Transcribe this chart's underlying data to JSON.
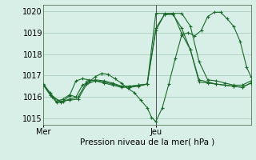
{
  "background_color": "#d8efe8",
  "grid_color": "#aacfbf",
  "line_color": "#1a6b2a",
  "xlabel": "Pression niveau de la mer( hPa )",
  "ylim": [
    1014.7,
    1020.3
  ],
  "yticks": [
    1015,
    1016,
    1017,
    1018,
    1019,
    1020
  ],
  "xlim": [
    0,
    48
  ],
  "xtick_pos": [
    0,
    26
  ],
  "xtick_labels": [
    "Mer",
    "Jeu"
  ],
  "vline_pos": 26,
  "series": [
    {
      "x": [
        0,
        1.5,
        3,
        4.5,
        6,
        7.5,
        9,
        10.5,
        12,
        13.5,
        15,
        16.5,
        18,
        19.5,
        21,
        22.5,
        24,
        25,
        26,
        27.5,
        29,
        30.5,
        32,
        33.5,
        35,
        36.5,
        38,
        39.5,
        41,
        42.5,
        44,
        45.5,
        47,
        48
      ],
      "y": [
        1016.6,
        1016.2,
        1015.8,
        1015.9,
        1016.1,
        1016.0,
        1016.55,
        1016.7,
        1016.95,
        1017.1,
        1017.05,
        1016.85,
        1016.65,
        1016.4,
        1016.2,
        1015.85,
        1015.5,
        1015.05,
        1014.85,
        1015.5,
        1016.6,
        1017.8,
        1018.9,
        1019.0,
        1018.85,
        1019.1,
        1019.75,
        1019.95,
        1019.95,
        1019.65,
        1019.3,
        1018.6,
        1017.4,
        1016.95
      ]
    },
    {
      "x": [
        0,
        1.5,
        3,
        4.5,
        6,
        7.5,
        9,
        10.5,
        12,
        14,
        16,
        18,
        20,
        22,
        24,
        26,
        28,
        30,
        32,
        34,
        36,
        38,
        40,
        42,
        44,
        46,
        48
      ],
      "y": [
        1016.55,
        1016.1,
        1015.75,
        1015.8,
        1016.05,
        1016.75,
        1016.85,
        1016.8,
        1016.75,
        1016.65,
        1016.55,
        1016.45,
        1016.45,
        1016.5,
        1016.6,
        1019.1,
        1019.85,
        1019.9,
        1019.9,
        1019.3,
        1017.65,
        1016.8,
        1016.75,
        1016.65,
        1016.55,
        1016.55,
        1016.75
      ]
    },
    {
      "x": [
        0,
        2,
        4,
        6,
        8,
        10,
        12,
        14,
        16,
        18,
        20,
        22,
        24,
        26,
        28,
        30,
        32,
        34,
        36,
        38,
        40,
        42,
        44,
        46,
        48
      ],
      "y": [
        1016.55,
        1016.05,
        1015.75,
        1015.9,
        1016.0,
        1016.7,
        1016.8,
        1016.75,
        1016.65,
        1016.5,
        1016.5,
        1016.55,
        1016.6,
        1019.2,
        1019.85,
        1019.85,
        1019.2,
        1018.2,
        1016.8,
        1016.7,
        1016.6,
        1016.55,
        1016.5,
        1016.45,
        1016.65
      ]
    },
    {
      "x": [
        0,
        2,
        4,
        6,
        8,
        10,
        12,
        14,
        16,
        18,
        20,
        22,
        24,
        26,
        28,
        30,
        32,
        34,
        36,
        38,
        40,
        42,
        44,
        46,
        48
      ],
      "y": [
        1016.55,
        1016.0,
        1015.8,
        1015.85,
        1015.9,
        1016.6,
        1016.75,
        1016.7,
        1016.6,
        1016.5,
        1016.5,
        1016.55,
        1016.6,
        1019.9,
        1019.9,
        1019.9,
        1018.95,
        1018.2,
        1016.7,
        1016.65,
        1016.6,
        1016.55,
        1016.5,
        1016.45,
        1016.65
      ]
    }
  ]
}
